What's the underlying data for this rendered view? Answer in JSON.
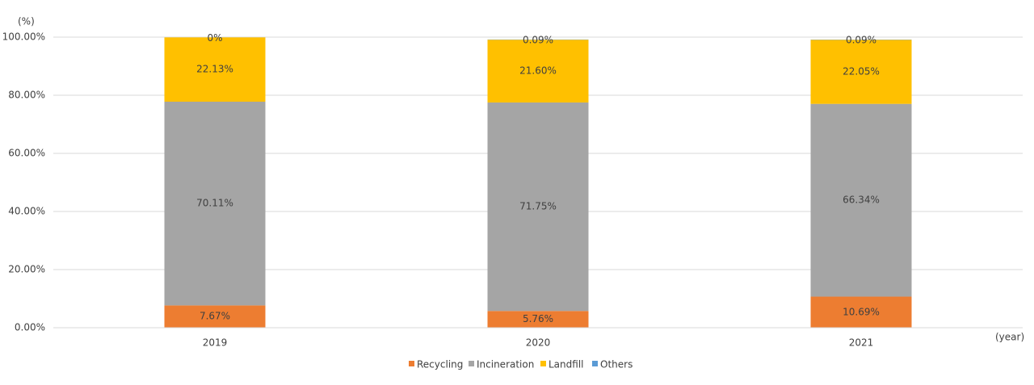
{
  "chart_data": {
    "type": "stacked-bar",
    "y_label": "(%)",
    "x_label": "(year)",
    "categories": [
      "2019",
      "2020",
      "2021"
    ],
    "series": [
      {
        "name": "Recycling",
        "color": "#ed7d31",
        "values": [
          7.67,
          5.76,
          10.69
        ],
        "value_labels": [
          "7.67%",
          "5.76%",
          "10.69%"
        ]
      },
      {
        "name": "Incineration",
        "color": "#a5a5a5",
        "values": [
          70.11,
          71.75,
          66.34
        ],
        "value_labels": [
          "70.11%",
          "71.75%",
          "66.34%"
        ]
      },
      {
        "name": "Landfill",
        "color": "#ffc000",
        "values": [
          22.13,
          21.6,
          22.05
        ],
        "value_labels": [
          "22.13%",
          "21.60%",
          "22.05%"
        ]
      },
      {
        "name": "Others",
        "color": "#5b9bd5",
        "values": [
          0,
          0.09,
          0.09
        ],
        "value_labels": [
          "0%",
          "0.09%",
          "0.09%"
        ]
      }
    ],
    "ylim": [
      0,
      100
    ],
    "yticks": [
      {
        "value": 0,
        "label": "0.00%"
      },
      {
        "value": 20,
        "label": "20.00%"
      },
      {
        "value": 40,
        "label": "40.00%"
      },
      {
        "value": 60,
        "label": "60.00%"
      },
      {
        "value": 80,
        "label": "80.00%"
      },
      {
        "value": 100,
        "label": "100.00%"
      }
    ],
    "grid": true,
    "legend": "bottom"
  }
}
